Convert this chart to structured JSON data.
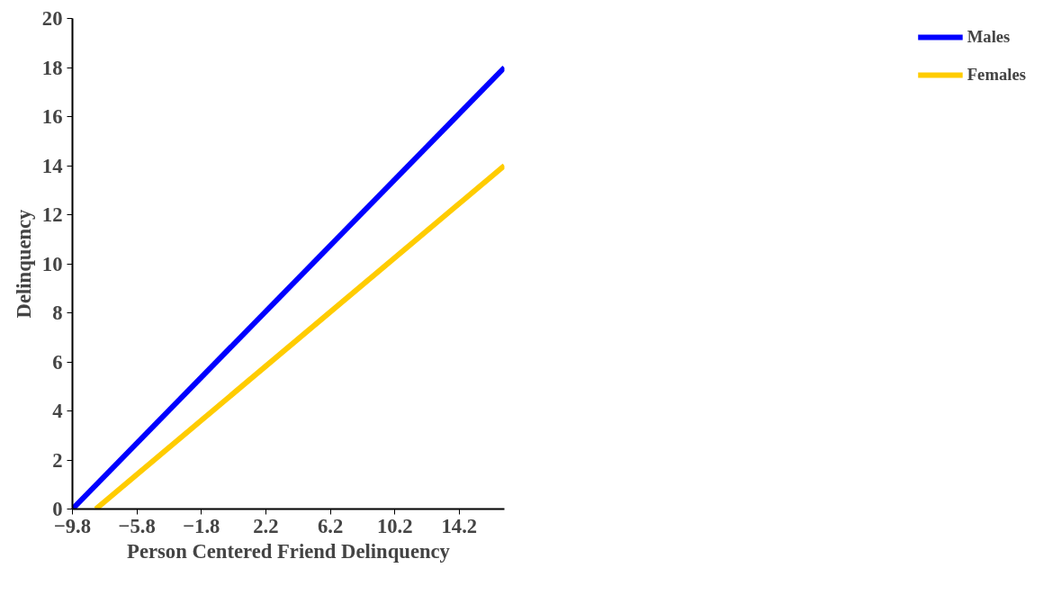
{
  "chart_data": {
    "type": "line",
    "xlabel": "Person Centered Friend Delinquency",
    "ylabel": "Delinquency",
    "xlim": [
      -9.8,
      17.0
    ],
    "xticks": [
      -9.8,
      -5.8,
      -1.8,
      2.2,
      6.2,
      10.2,
      14.2
    ],
    "ylim": [
      0,
      20
    ],
    "yticks": [
      0,
      2,
      4,
      6,
      8,
      10,
      12,
      14,
      16,
      18,
      20
    ],
    "series": [
      {
        "name": "Males",
        "color": "#0000ff",
        "x": [
          -9.8,
          17.0
        ],
        "values": [
          0,
          18.0
        ]
      },
      {
        "name": "Females",
        "color": "#ffcc00",
        "x": [
          -8.35,
          17.0
        ],
        "values": [
          0,
          14.0
        ]
      }
    ],
    "legend": "right",
    "grid": false,
    "line_style": "solid",
    "marker": "none"
  }
}
